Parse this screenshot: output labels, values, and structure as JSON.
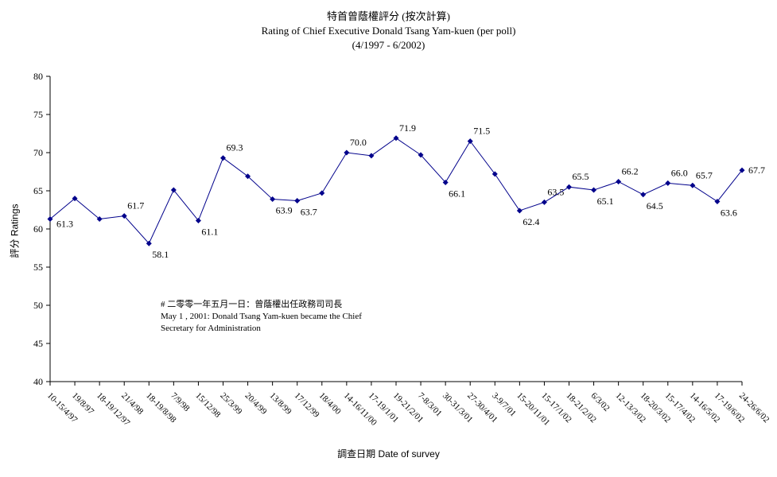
{
  "chart_data": {
    "type": "line",
    "title": "特首曾蔭權評分 (按次計算)",
    "subtitle": "Rating of Chief Executive Donald Tsang Yam-kuen  (per poll)",
    "period": "(4/1997 - 6/2002)",
    "xlabel": "調查日期 Date of survey",
    "ylabel": "評分 Ratings",
    "ylim": [
      40,
      80
    ],
    "yticks": [
      "40",
      "45",
      "50",
      "55",
      "60",
      "65",
      "70",
      "75",
      "80"
    ],
    "grid": false,
    "categories": [
      "10-15/4/97",
      "19/8/97",
      "18-19/12/97",
      "21/4/98",
      "18-19/8/98",
      "7/9/98",
      "15/12/98",
      "25/3/99",
      "20/4/99",
      "13/8/99",
      "17/12/99",
      "18/4/00",
      "14-16/11/00",
      "17-19/1/01",
      "19-21/2/01",
      "7-8/3/01",
      "30-31/3/01",
      "27-30/4/01",
      "3-9/7/01",
      "15-20/11/01",
      "15-17/1/02",
      "18-21/2/02",
      "6/3/02",
      "12-13/3/02",
      "18-20/3/02",
      "15-17/4/02",
      "14-16/5/02",
      "17-19/6/02",
      "24-26/6/02"
    ],
    "values": [
      61.3,
      64.0,
      61.3,
      61.7,
      58.1,
      65.1,
      61.1,
      69.3,
      66.9,
      63.9,
      63.7,
      64.7,
      70.0,
      69.6,
      71.9,
      69.7,
      66.1,
      71.5,
      67.2,
      62.4,
      63.5,
      65.5,
      65.1,
      66.2,
      64.5,
      66.0,
      65.7,
      63.6,
      67.7
    ],
    "data_labels": [
      {
        "index": 0,
        "text": "61.3"
      },
      {
        "index": 3,
        "text": "61.7"
      },
      {
        "index": 4,
        "text": "58.1"
      },
      {
        "index": 6,
        "text": "61.1"
      },
      {
        "index": 7,
        "text": "69.3"
      },
      {
        "index": 9,
        "text": "63.9"
      },
      {
        "index": 10,
        "text": "63.7"
      },
      {
        "index": 12,
        "text": "70.0"
      },
      {
        "index": 14,
        "text": "71.9"
      },
      {
        "index": 16,
        "text": "66.1"
      },
      {
        "index": 17,
        "text": "71.5"
      },
      {
        "index": 19,
        "text": "62.4"
      },
      {
        "index": 20,
        "text": "63.5"
      },
      {
        "index": 21,
        "text": "65.5"
      },
      {
        "index": 22,
        "text": "65.1"
      },
      {
        "index": 23,
        "text": "66.2"
      },
      {
        "index": 24,
        "text": "64.5"
      },
      {
        "index": 25,
        "text": "66.0"
      },
      {
        "index": 26,
        "text": "65.7"
      },
      {
        "index": 27,
        "text": "63.6"
      },
      {
        "index": 28,
        "text": "67.7"
      }
    ],
    "annotation": {
      "line1": "# 二零零一年五月一日：曾蔭權出任政務司司長",
      "line2": "May 1 , 2001: Donald Tsang Yam-kuen became the Chief",
      "line3": "Secretary for Administration"
    },
    "colors": {
      "line": "#00008B",
      "marker": "#00008B",
      "axis": "#000000"
    }
  }
}
